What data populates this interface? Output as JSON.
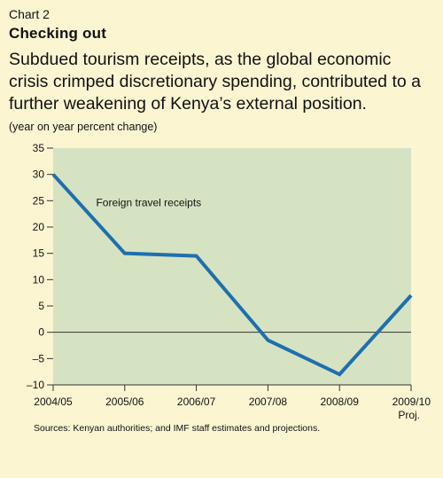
{
  "header": {
    "chart_number": "Chart 2",
    "title": "Checking out",
    "subtitle": "Subdued tourism receipts, as the global economic crisis crimped discretionary spending, contributed to a further weakening of Kenya’s external position.",
    "unit": "(year on year percent change)"
  },
  "footer": {
    "source": "Sources: Kenyan authorities; and IMF staff estimates and projections."
  },
  "colors": {
    "panel_background": "#fbf5d2",
    "plot_background": "#d6e3c2",
    "series_line": "#1f6fae",
    "zero_line": "#333333"
  },
  "chart_data": {
    "type": "line",
    "title": "Checking out",
    "xlabel": "",
    "ylabel": "(year on year percent change)",
    "categories": [
      "2004/05",
      "2005/06",
      "2006/07",
      "2007/08",
      "2008/09",
      "2009/10"
    ],
    "category_sublabels": [
      "",
      "",
      "",
      "",
      "",
      "Proj."
    ],
    "ylim": [
      -10,
      35
    ],
    "yticks": [
      35,
      30,
      25,
      20,
      15,
      10,
      5,
      0,
      -5,
      -10
    ],
    "ytick_labels": [
      "35",
      "30",
      "25",
      "20",
      "15",
      "10",
      "5",
      "0",
      "–5",
      "–10"
    ],
    "grid": false,
    "legend": "none",
    "series": [
      {
        "name": "Foreign travel receipts",
        "values": [
          30,
          15,
          14.5,
          -1.5,
          -8,
          7
        ]
      }
    ],
    "annotations": [
      {
        "text": "Foreign travel receipts",
        "x_index": 0.6,
        "y": 24
      }
    ]
  }
}
